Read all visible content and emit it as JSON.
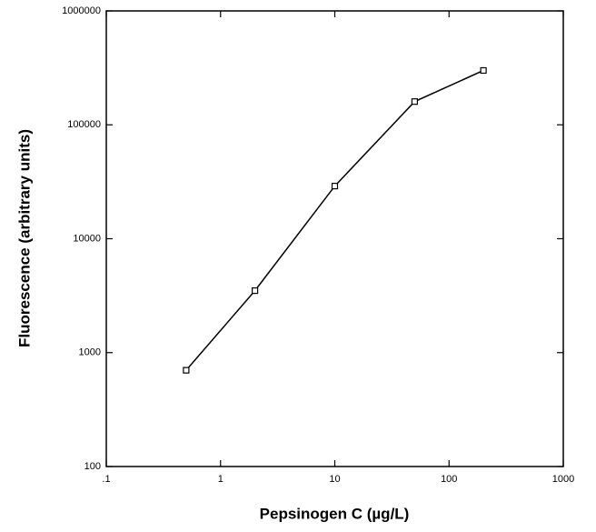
{
  "chart_data": {
    "type": "line",
    "x_label": "Pepsinogen  C  (µg/L)",
    "y_label": "Fluorescence  (arbitrary  units)",
    "x": [
      0.5,
      2,
      10,
      50,
      200
    ],
    "values": [
      700,
      3500,
      29000,
      160000,
      300000
    ],
    "color": "#000000",
    "xscale": "log",
    "yscale": "log",
    "xlim": [
      0.1,
      1000
    ],
    "xticks": [
      {
        "value": 0.1,
        "label": ".1"
      },
      1,
      10,
      100,
      1000
    ],
    "ylim": [
      100,
      1000000
    ],
    "yticks": [
      100,
      1000,
      10000,
      100000,
      1000000
    ]
  }
}
